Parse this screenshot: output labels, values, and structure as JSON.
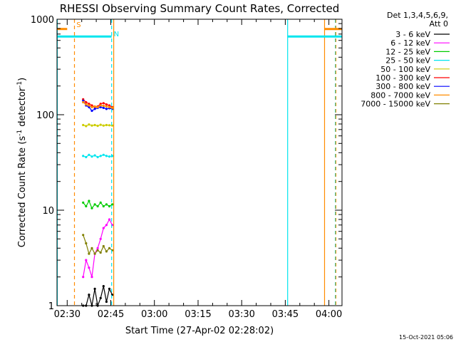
{
  "chart_data": {
    "type": "line",
    "title": "RHESSI Observing Summary Count Rates, Corrected",
    "xlabel": "Start Time (27-Apr-02 02:28:02)",
    "ylabel": "Corrected Count Rate (s",
    "ylabel_sup": "-1",
    "ylabel_mid": " detector",
    "ylabel_end": ")",
    "y_scale": "log",
    "ylim": [
      1,
      1000
    ],
    "xlim_minutes": [
      146.5,
      244.5
    ],
    "x_ticks": [
      {
        "label": "02:30",
        "minutes": 150
      },
      {
        "label": "02:45",
        "minutes": 165
      },
      {
        "label": "03:00",
        "minutes": 180
      },
      {
        "label": "03:15",
        "minutes": 195
      },
      {
        "label": "03:30",
        "minutes": 210
      },
      {
        "label": "03:45",
        "minutes": 225
      },
      {
        "label": "04:00",
        "minutes": 240
      }
    ],
    "y_ticks": [
      {
        "label": "1000",
        "value": 1000
      },
      {
        "label": "100",
        "value": 100
      },
      {
        "label": "10",
        "value": 10
      },
      {
        "label": "1",
        "value": 1
      }
    ],
    "grid": false,
    "legend_placement": "right",
    "legend_header": [
      "Det 1,3,4,5,6,9,",
      "Att 0"
    ],
    "series": [
      {
        "name": "3 - 6 keV",
        "color": "#000000",
        "t": [
          155.5,
          156.5,
          157.5,
          158.5,
          159.5,
          160.5,
          161.5,
          162.5,
          163.5,
          164.5,
          165.5
        ],
        "values": [
          1.0,
          1.0,
          1.3,
          1.0,
          1.5,
          1.0,
          1.2,
          1.6,
          1.1,
          1.5,
          1.3
        ]
      },
      {
        "name": "6 - 12 keV",
        "color": "#ff00ff",
        "t": [
          155.5,
          156.5,
          157.5,
          158.5,
          159.5,
          160.5,
          161.5,
          162.5,
          163.5,
          164.5,
          165.5
        ],
        "values": [
          2.0,
          3.0,
          2.5,
          2.0,
          3.5,
          4.0,
          5.0,
          6.5,
          7.0,
          8.0,
          7.0
        ]
      },
      {
        "name": "12 - 25 keV",
        "color": "#00cc00",
        "t": [
          155.5,
          156.5,
          157.5,
          158.5,
          159.5,
          160.5,
          161.5,
          162.5,
          163.5,
          164.5,
          165.5
        ],
        "values": [
          12.0,
          11.0,
          12.5,
          10.5,
          11.5,
          11.0,
          12.0,
          11.0,
          11.5,
          11.0,
          11.5
        ]
      },
      {
        "name": "25 - 50 keV",
        "color": "#00e5ee",
        "t": [
          155.5,
          156.5,
          157.5,
          158.5,
          159.5,
          160.5,
          161.5,
          162.5,
          163.5,
          164.5,
          165.5
        ],
        "values": [
          37.0,
          36.0,
          38.0,
          36.5,
          37.5,
          36.0,
          37.0,
          38.0,
          37.0,
          36.5,
          37.0
        ]
      },
      {
        "name": "50 - 100 keV",
        "color": "#cccc00",
        "t": [
          155.5,
          156.5,
          157.5,
          158.5,
          159.5,
          160.5,
          161.5,
          162.5,
          163.5,
          164.5,
          165.5
        ],
        "values": [
          78.0,
          76.0,
          79.0,
          77.0,
          78.0,
          76.5,
          78.5,
          77.0,
          78.0,
          77.5,
          77.0
        ]
      },
      {
        "name": "100 - 300 keV",
        "color": "#ff0000",
        "t": [
          155.5,
          156.5,
          157.5,
          158.5,
          159.5,
          160.5,
          161.5,
          162.5,
          163.5,
          164.5,
          165.5
        ],
        "values": [
          145.0,
          135.0,
          130.0,
          125.0,
          120.0,
          122.0,
          130.0,
          132.0,
          128.0,
          125.0,
          120.0
        ]
      },
      {
        "name": "300 - 800 keV",
        "color": "#0000ff",
        "t": [
          155.5,
          156.5,
          157.5,
          158.5,
          159.5,
          160.5,
          161.5,
          162.5,
          163.5,
          164.5,
          165.5
        ],
        "values": [
          140.0,
          125.0,
          120.0,
          110.0,
          115.0,
          118.0,
          120.0,
          118.0,
          115.0,
          117.0,
          115.0
        ]
      },
      {
        "name": "800 - 7000 keV",
        "color": "#ff8c00",
        "t": [
          155.5,
          156.5,
          157.5,
          158.5,
          159.5,
          160.5,
          161.5,
          162.5,
          163.5,
          164.5,
          165.5
        ],
        "values": [
          135.0,
          128.0,
          125.0,
          120.0,
          122.0,
          120.0,
          125.0,
          124.0,
          122.0,
          120.0,
          118.0
        ]
      },
      {
        "name": "7000 - 15000 keV",
        "color": "#808000",
        "t": [
          155.5,
          156.5,
          157.5,
          158.5,
          159.5,
          160.5,
          161.5,
          162.5,
          163.5,
          164.5,
          165.5
        ],
        "values": [
          5.5,
          4.5,
          3.5,
          4.0,
          3.5,
          3.8,
          3.6,
          4.2,
          3.7,
          4.0,
          3.8
        ]
      }
    ],
    "vertical_lines": [
      {
        "minutes": 146.6,
        "color": "#00e5ee",
        "dashed": false
      },
      {
        "minutes": 152.5,
        "color": "#ff8c00",
        "dashed": true
      },
      {
        "minutes": 165.3,
        "color": "#00e5ee",
        "dashed": true
      },
      {
        "minutes": 166.0,
        "color": "#ff8c00",
        "dashed": false
      },
      {
        "minutes": 225.8,
        "color": "#00e5ee",
        "dashed": false
      },
      {
        "minutes": 238.5,
        "color": "#ff8c00",
        "dashed": false
      },
      {
        "minutes": 242.2,
        "color": "#00e5ee",
        "dashed": true
      },
      {
        "minutes": 242.4,
        "color": "#ff8c00",
        "dashed": true
      }
    ],
    "flag_bars": [
      {
        "from": 146.6,
        "to": 150.0,
        "value": 790,
        "color": "#ff8c00"
      },
      {
        "from": 238.5,
        "to": 244.4,
        "value": 790,
        "color": "#ff8c00"
      },
      {
        "from": 146.6,
        "to": 165.3,
        "value": 660,
        "color": "#00e5ee"
      },
      {
        "from": 225.8,
        "to": 244.4,
        "value": 660,
        "color": "#00e5ee"
      }
    ],
    "markers": [
      {
        "label": "S",
        "minutes": 153.2,
        "value": 830,
        "color": "#ff8c00"
      },
      {
        "label": "N",
        "minutes": 166.0,
        "value": 660,
        "color": "#00e5ee"
      }
    ],
    "footer_date": "15-Oct-2021 05:06"
  }
}
